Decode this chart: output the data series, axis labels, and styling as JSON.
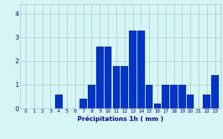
{
  "hours": [
    0,
    1,
    2,
    3,
    4,
    5,
    6,
    7,
    8,
    9,
    10,
    11,
    12,
    13,
    14,
    15,
    16,
    17,
    18,
    19,
    20,
    21,
    22,
    23
  ],
  "values": [
    0,
    0,
    0,
    0,
    0.6,
    0,
    0,
    0.4,
    1.0,
    2.6,
    2.6,
    1.8,
    1.8,
    3.3,
    3.3,
    1.0,
    0.2,
    1.0,
    1.0,
    1.0,
    0.6,
    0,
    0.6,
    1.4
  ],
  "bar_color": "#0033cc",
  "bg_color": "#d6f5f5",
  "grid_color": "#afc8c8",
  "xlabel": "Précipitations 1h ( mm )",
  "xlabel_color": "#0000cc",
  "tick_color": "#0000cc",
  "ylim": [
    0,
    4.4
  ],
  "yticks": [
    0,
    1,
    2,
    3,
    4
  ]
}
